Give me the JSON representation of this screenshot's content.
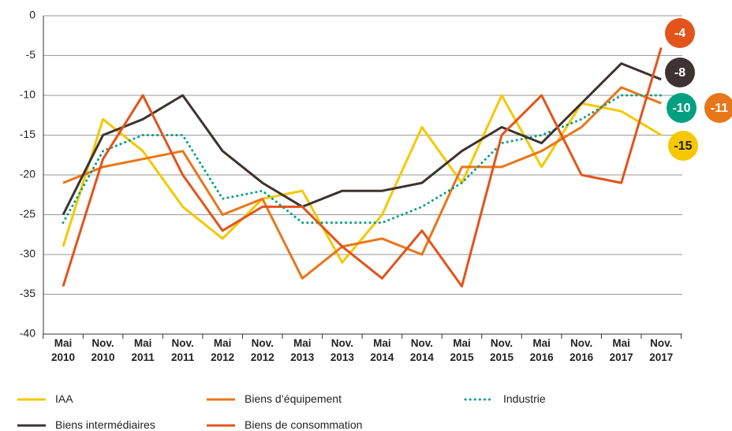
{
  "chart_data": {
    "type": "line",
    "categories": [
      "Mai 2010",
      "Nov. 2010",
      "Mai 2011",
      "Nov. 2011",
      "Mai 2012",
      "Nov. 2012",
      "Mai 2013",
      "Nov. 2013",
      "Mai 2014",
      "Nov. 2014",
      "Mai 2015",
      "Nov. 2015",
      "Mai 2016",
      "Nov. 2016",
      "Mai 2017",
      "Nov. 2017"
    ],
    "series": [
      {
        "name": "IAA",
        "color": "#f5c800",
        "values": [
          -29,
          -13,
          -17,
          -24,
          -28,
          -23,
          -22,
          -31,
          -25,
          -14,
          -21,
          -10,
          -19,
          -11,
          -12,
          -15
        ]
      },
      {
        "name": "Biens d’équipement",
        "color": "#e8761b",
        "values": [
          -21,
          -19,
          -18,
          -17,
          -25,
          -23,
          -33,
          -29,
          -28,
          -30,
          -19,
          -19,
          -17,
          -14,
          -9,
          -11
        ]
      },
      {
        "name": "Industrie",
        "color": "#00a080",
        "dashed": true,
        "values": [
          -26,
          -17,
          -15,
          -15,
          -23,
          -22,
          -26,
          -26,
          -26,
          -24,
          -21,
          -16,
          -15,
          -13,
          -10,
          -10
        ]
      },
      {
        "name": "Biens intermédiaires",
        "color": "#3d3330",
        "values": [
          -25,
          -15,
          -13,
          -10,
          -17,
          -21,
          -24,
          -22,
          -22,
          -21,
          -17,
          -14,
          -16,
          -11,
          -6,
          -8
        ]
      },
      {
        "name": "Biens de consommation",
        "color": "#e2541c",
        "values": [
          -34,
          -18,
          -10,
          -20,
          -27,
          -24,
          -24,
          -29,
          -33,
          -27,
          -34,
          -15,
          -10,
          -20,
          -21,
          -4
        ]
      }
    ],
    "ylim": [
      -40,
      0
    ],
    "yticks": [
      -40,
      -35,
      -30,
      -25,
      -20,
      -15,
      -10,
      -5,
      0
    ],
    "grid": true
  }
}
